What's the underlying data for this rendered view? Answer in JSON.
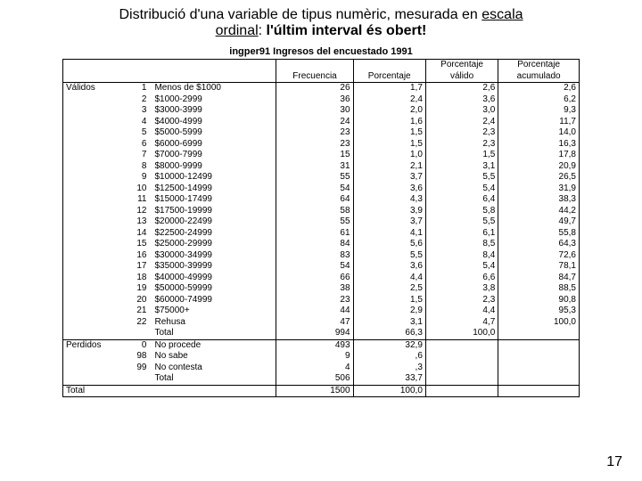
{
  "title": {
    "part1": "Distribució d'una variable de tipus numèric, mesurada en ",
    "underline1": "escala",
    "underline2": "ordinal",
    "colon": ": ",
    "bold": "l'últim interval és obert!"
  },
  "table_title": "ingper91  Ingresos del encuestado 1991",
  "headers": {
    "h1": "",
    "h2": "",
    "h3": "",
    "freq": "Frecuencia",
    "pct": "Porcentaje",
    "valid": "Porcentaje válido",
    "cum": "Porcentaje acumulado"
  },
  "sections": {
    "valid": "Válidos",
    "missing": "Perdidos",
    "total": "Total"
  },
  "rows": [
    {
      "code": "1",
      "label": "Menos de $1000",
      "freq": "26",
      "pct": "1,7",
      "valid": "2,6",
      "cum": "2,6"
    },
    {
      "code": "2",
      "label": "$1000-2999",
      "freq": "36",
      "pct": "2,4",
      "valid": "3,6",
      "cum": "6,2"
    },
    {
      "code": "3",
      "label": "$3000-3999",
      "freq": "30",
      "pct": "2,0",
      "valid": "3,0",
      "cum": "9,3"
    },
    {
      "code": "4",
      "label": "$4000-4999",
      "freq": "24",
      "pct": "1,6",
      "valid": "2,4",
      "cum": "11,7"
    },
    {
      "code": "5",
      "label": "$5000-5999",
      "freq": "23",
      "pct": "1,5",
      "valid": "2,3",
      "cum": "14,0"
    },
    {
      "code": "6",
      "label": "$6000-6999",
      "freq": "23",
      "pct": "1,5",
      "valid": "2,3",
      "cum": "16,3"
    },
    {
      "code": "7",
      "label": "$7000-7999",
      "freq": "15",
      "pct": "1,0",
      "valid": "1,5",
      "cum": "17,8"
    },
    {
      "code": "8",
      "label": "$8000-9999",
      "freq": "31",
      "pct": "2,1",
      "valid": "3,1",
      "cum": "20,9"
    },
    {
      "code": "9",
      "label": "$10000-12499",
      "freq": "55",
      "pct": "3,7",
      "valid": "5,5",
      "cum": "26,5"
    },
    {
      "code": "10",
      "label": "$12500-14999",
      "freq": "54",
      "pct": "3,6",
      "valid": "5,4",
      "cum": "31,9"
    },
    {
      "code": "11",
      "label": "$15000-17499",
      "freq": "64",
      "pct": "4,3",
      "valid": "6,4",
      "cum": "38,3"
    },
    {
      "code": "12",
      "label": "$17500-19999",
      "freq": "58",
      "pct": "3,9",
      "valid": "5,8",
      "cum": "44,2"
    },
    {
      "code": "13",
      "label": "$20000-22499",
      "freq": "55",
      "pct": "3,7",
      "valid": "5,5",
      "cum": "49,7"
    },
    {
      "code": "14",
      "label": "$22500-24999",
      "freq": "61",
      "pct": "4,1",
      "valid": "6,1",
      "cum": "55,8"
    },
    {
      "code": "15",
      "label": "$25000-29999",
      "freq": "84",
      "pct": "5,6",
      "valid": "8,5",
      "cum": "64,3"
    },
    {
      "code": "16",
      "label": "$30000-34999",
      "freq": "83",
      "pct": "5,5",
      "valid": "8,4",
      "cum": "72,6"
    },
    {
      "code": "17",
      "label": "$35000-39999",
      "freq": "54",
      "pct": "3,6",
      "valid": "5,4",
      "cum": "78,1"
    },
    {
      "code": "18",
      "label": "$40000-49999",
      "freq": "66",
      "pct": "4,4",
      "valid": "6,6",
      "cum": "84,7"
    },
    {
      "code": "19",
      "label": "$50000-59999",
      "freq": "38",
      "pct": "2,5",
      "valid": "3,8",
      "cum": "88,5"
    },
    {
      "code": "20",
      "label": "$60000-74999",
      "freq": "23",
      "pct": "1,5",
      "valid": "2,3",
      "cum": "90,8"
    },
    {
      "code": "21",
      "label": "$75000+",
      "freq": "44",
      "pct": "2,9",
      "valid": "4,4",
      "cum": "95,3"
    },
    {
      "code": "22",
      "label": "Rehusa",
      "freq": "47",
      "pct": "3,1",
      "valid": "4,7",
      "cum": "100,0"
    },
    {
      "code": "",
      "label": "Total",
      "freq": "994",
      "pct": "66,3",
      "valid": "100,0",
      "cum": ""
    }
  ],
  "missing_rows": [
    {
      "code": "0",
      "label": "No procede",
      "freq": "493",
      "pct": "32,9",
      "valid": "",
      "cum": ""
    },
    {
      "code": "98",
      "label": "No sabe",
      "freq": "9",
      "pct": ",6",
      "valid": "",
      "cum": ""
    },
    {
      "code": "99",
      "label": "No contesta",
      "freq": "4",
      "pct": ",3",
      "valid": "",
      "cum": ""
    },
    {
      "code": "",
      "label": "Total",
      "freq": "506",
      "pct": "33,7",
      "valid": "",
      "cum": ""
    }
  ],
  "grand_total": {
    "freq": "1500",
    "pct": "100,0"
  },
  "page_number": "17",
  "colors": {
    "text": "#000000",
    "bg": "#ffffff",
    "border": "#000000"
  }
}
